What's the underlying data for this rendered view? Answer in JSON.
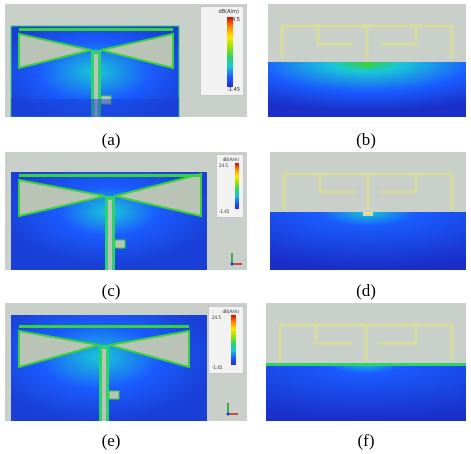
{
  "captions": [
    "(a)",
    "(b)",
    "(c)",
    "(d)",
    "(e)",
    "(f)"
  ],
  "legend": {
    "unit": "dB(A/m)",
    "max_label": "24.5",
    "min_label": "-1.45"
  },
  "colors": {
    "field_low": "#1a3fd6",
    "field_mid": "#19c6d6",
    "field_high": "#3ad13a",
    "antenna_fill": "#b9c3b6",
    "antenna_edge": "#3ad13a",
    "background_gray": "#c9cfc9"
  }
}
